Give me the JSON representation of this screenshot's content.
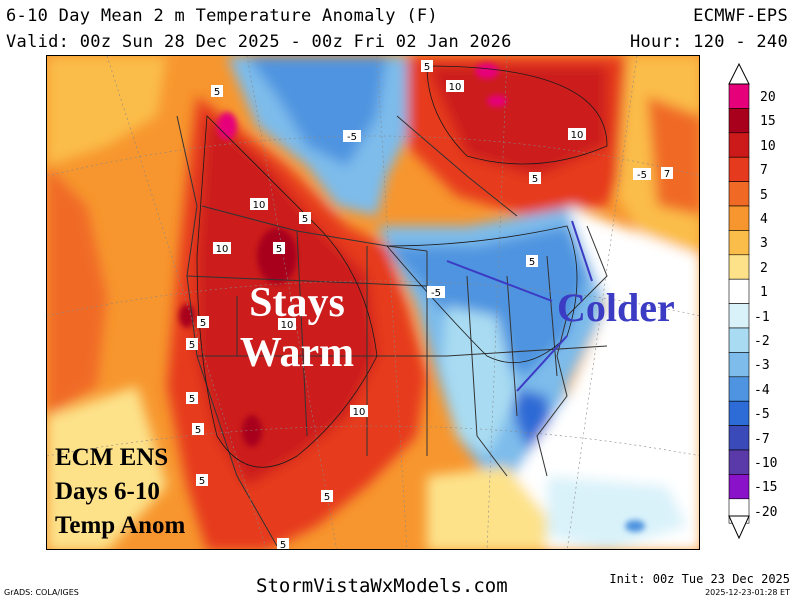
{
  "header": {
    "title": "6-10 Day Mean 2 m Temperature Anomaly (F)",
    "model": "ECMWF-EPS",
    "valid": "Valid: 00z Sun 28 Dec 2025 - 00z Fri 02 Jan 2026",
    "hours": "Hour: 120 - 240"
  },
  "annotations": {
    "warm": "Stays\nWarm",
    "cold": "Colder",
    "label": "ECM ENS\nDays 6-10\nTemp Anom"
  },
  "contour_labels": [
    "5",
    "-5",
    "10",
    "10",
    "10",
    "5",
    "10",
    "5",
    "-5",
    "10",
    "5",
    "10",
    "5",
    "5",
    "5",
    "5",
    "5",
    "5",
    "5",
    "5",
    "-5",
    "5",
    "7"
  ],
  "colorbar": {
    "ticks": [
      "20",
      "15",
      "10",
      "7",
      "5",
      "4",
      "3",
      "2",
      "1",
      "-1",
      "-2",
      "-3",
      "-4",
      "-5",
      "-7",
      "-10",
      "-15",
      "-20"
    ],
    "colors": [
      "#e6007a",
      "#a8001c",
      "#cc1a1a",
      "#e63a1e",
      "#f06a26",
      "#f7962e",
      "#fbbd4a",
      "#fde28a",
      "#ffffff",
      "#d9f2fa",
      "#a9dcf2",
      "#7dbceb",
      "#4f94e0",
      "#2d6bd6",
      "#3a4ab8",
      "#5a3aa8",
      "#8a12c8",
      "#ffffff"
    ]
  },
  "footer": {
    "grads": "GrADS: COLA/IGES",
    "site": "StormVistaWxModels.com",
    "init": "Init: 00z Tue 23 Dec 2025",
    "stamp": "2025-12-23-01:28 ET"
  }
}
